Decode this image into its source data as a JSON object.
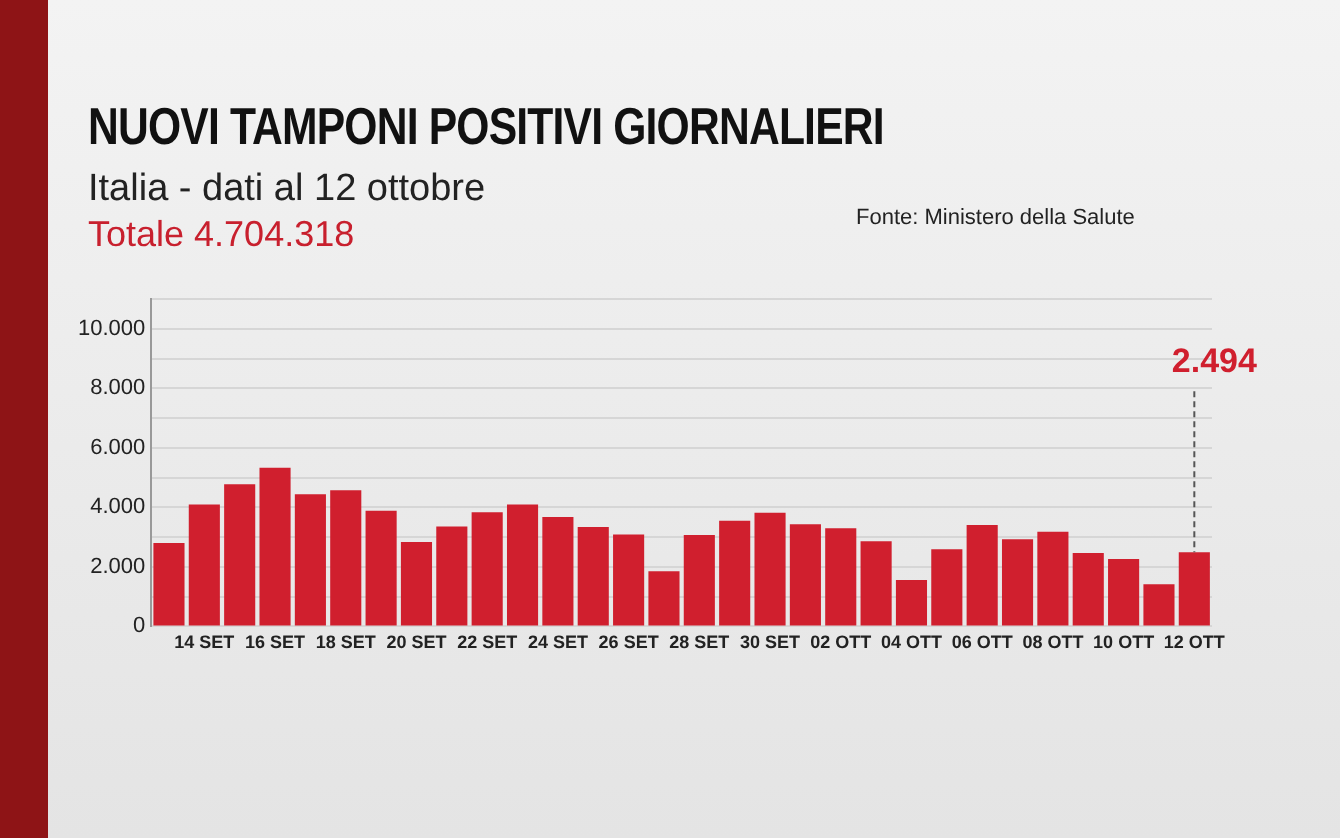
{
  "chart_data": {
    "type": "bar",
    "title": "NUOVI TAMPONI POSITIVI GIORNALIERI",
    "subtitle": "Italia - dati al 12 ottobre",
    "annotations": [
      "Fonte: Ministero della Salute",
      "Totale 4.704.318",
      {
        "text": "2.494",
        "x": "12 OTT",
        "y": 2494
      }
    ],
    "categories": [
      null,
      "14 SET",
      null,
      "16 SET",
      null,
      "18 SET",
      null,
      "20 SET",
      null,
      "22 SET",
      null,
      "24 SET",
      null,
      "26 SET",
      null,
      "28 SET",
      null,
      "30 SET",
      null,
      "02 OTT",
      null,
      "04 OTT",
      null,
      "06 OTT",
      null,
      "08 OTT",
      null,
      "10 OTT",
      null,
      "12 OTT"
    ],
    "values": [
      2800,
      4100,
      4780,
      5330,
      4440,
      4580,
      3890,
      2840,
      3360,
      3840,
      4100,
      3680,
      3340,
      3090,
      1850,
      3070,
      3550,
      3820,
      3430,
      3300,
      2860,
      1560,
      2590,
      3410,
      2930,
      3180,
      2470,
      2270,
      1420,
      2494
    ],
    "color": "#d01f2e",
    "ylim": [
      0,
      11000
    ],
    "yticks": [
      {
        "value": 0,
        "label": "0"
      },
      {
        "value": 1000,
        "label": null
      },
      {
        "value": 2000,
        "label": "2.000"
      },
      {
        "value": 3000,
        "label": null
      },
      {
        "value": 4000,
        "label": "4.000"
      },
      {
        "value": 5000,
        "label": null
      },
      {
        "value": 6000,
        "label": "6.000"
      },
      {
        "value": 7000,
        "label": null
      },
      {
        "value": 8000,
        "label": "8.000"
      },
      {
        "value": 9000,
        "label": null
      },
      {
        "value": 10000,
        "label": "10.000"
      },
      {
        "value": 11000,
        "label": null
      }
    ],
    "grid": "y"
  }
}
